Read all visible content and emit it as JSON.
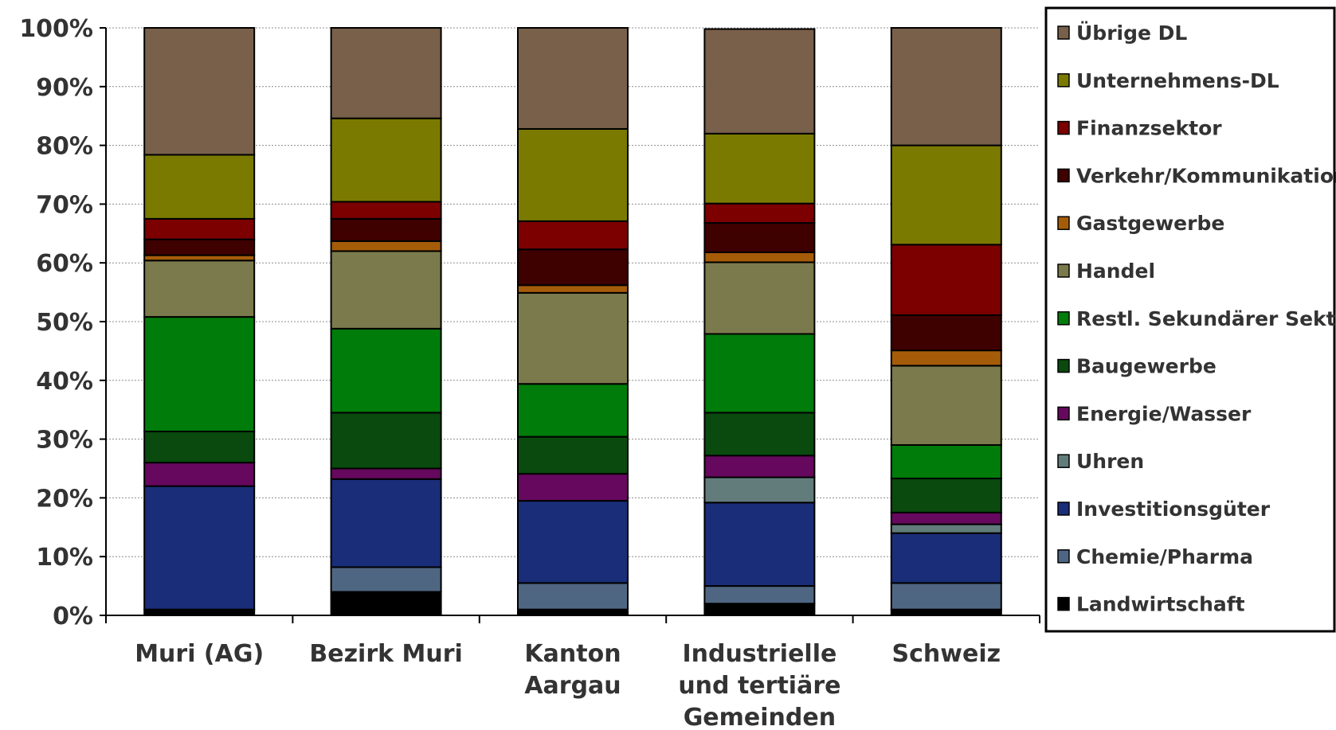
{
  "chart_data": {
    "type": "bar",
    "stacked": true,
    "normalized": true,
    "categories": [
      "Muri (AG)",
      "Bezirk Muri",
      "Kanton Aargau",
      "Industrielle und tertiäre Gemeinden",
      "Schweiz"
    ],
    "category_lines": [
      [
        "Muri (AG)"
      ],
      [
        "Bezirk Muri"
      ],
      [
        "Kanton",
        "Aargau"
      ],
      [
        "Industrielle",
        "und tertiäre",
        "Gemeinden"
      ],
      [
        "Schweiz"
      ]
    ],
    "ylim": [
      0,
      100
    ],
    "yticks": [
      0,
      10,
      20,
      30,
      40,
      50,
      60,
      70,
      80,
      90,
      100
    ],
    "ytick_labels": [
      "0%",
      "10%",
      "20%",
      "30%",
      "40%",
      "50%",
      "60%",
      "70%",
      "80%",
      "90%",
      "100%"
    ],
    "grid": true,
    "legend_position": "right",
    "series": [
      {
        "name": "Landwirtschaft",
        "color": "#000000",
        "values": [
          1.0,
          4.0,
          1.0,
          2.0,
          1.0
        ]
      },
      {
        "name": "Chemie/Pharma",
        "color": "#4f6682",
        "values": [
          0.0,
          4.2,
          4.5,
          3.0,
          4.5
        ]
      },
      {
        "name": "Investitionsgüter",
        "color": "#1a2d78",
        "values": [
          21.0,
          15.0,
          14.0,
          14.2,
          8.5
        ]
      },
      {
        "name": "Uhren",
        "color": "#627c7c",
        "values": [
          0.0,
          0.0,
          0.0,
          4.3,
          1.5
        ]
      },
      {
        "name": "Energie/Wasser",
        "color": "#66085e",
        "values": [
          4.0,
          1.8,
          4.6,
          3.7,
          2.0
        ]
      },
      {
        "name": "Baugewerbe",
        "color": "#0a4a0e",
        "values": [
          5.3,
          9.5,
          6.3,
          7.3,
          5.8
        ]
      },
      {
        "name": "Restl. Sekundärer Sektor",
        "color": "#007c0b",
        "values": [
          19.5,
          14.3,
          9.0,
          13.4,
          5.7
        ]
      },
      {
        "name": "Handel",
        "color": "#7b7a4c",
        "values": [
          9.6,
          13.2,
          15.5,
          12.2,
          13.5
        ]
      },
      {
        "name": "Gastgewerbe",
        "color": "#a55c09",
        "values": [
          0.9,
          1.7,
          1.3,
          1.7,
          2.6
        ]
      },
      {
        "name": "Verkehr/Kommunikation",
        "color": "#3f0000",
        "values": [
          2.7,
          3.8,
          6.1,
          5.0,
          6.0
        ]
      },
      {
        "name": "Finanzsektor",
        "color": "#7c0000",
        "values": [
          3.5,
          2.9,
          4.8,
          3.3,
          12.0
        ]
      },
      {
        "name": "Unternehmens-DL",
        "color": "#7b7a00",
        "values": [
          10.9,
          14.2,
          15.7,
          11.9,
          16.9
        ]
      },
      {
        "name": "Übrige DL",
        "color": "#79604a",
        "values": [
          21.6,
          15.4,
          17.2,
          17.8,
          20.0
        ]
      }
    ]
  }
}
